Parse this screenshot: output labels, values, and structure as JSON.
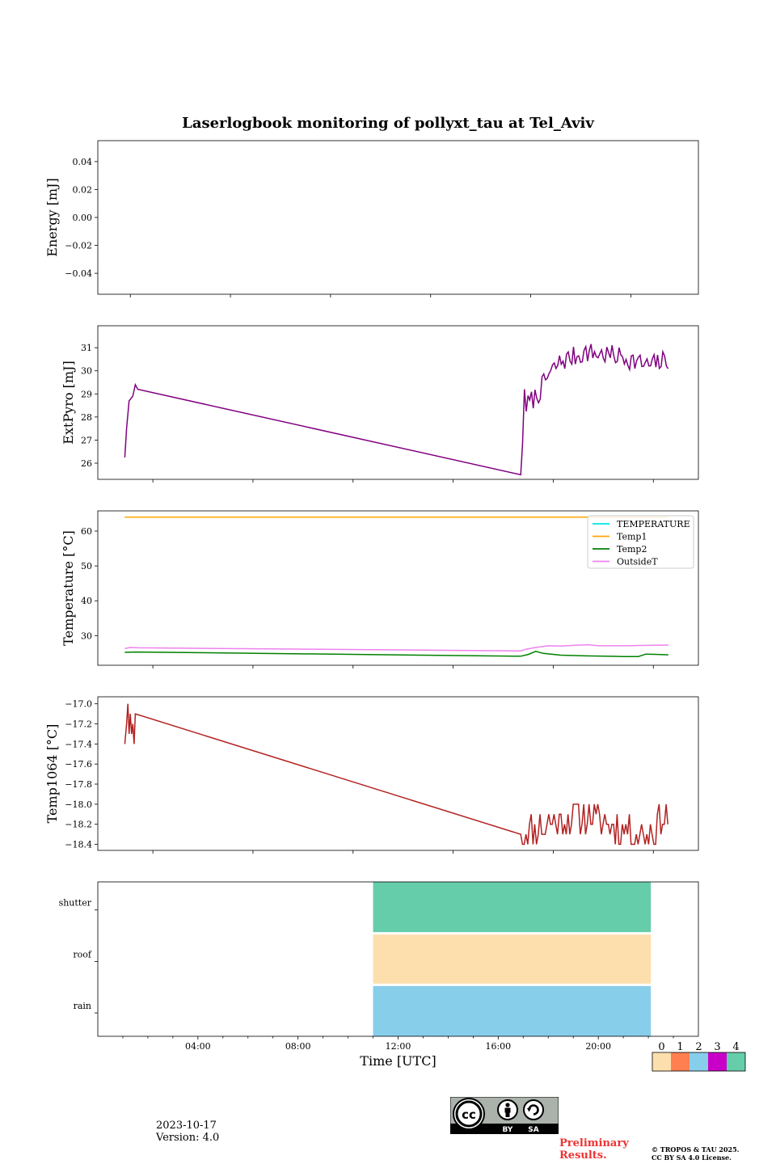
{
  "figure_title": "Laserlogbook monitoring of pollyxt_tau at Tel_Aviv",
  "footer": {
    "date": "2023-10-17",
    "version": "Version: 4.0",
    "preliminary_line1": "Preliminary",
    "preliminary_line2": "Results.",
    "copyright_line1": "© TROPOS & TAU 2025.",
    "copyright_line2": "CC BY SA 4.0 License.",
    "badge_labels": [
      "BY",
      "SA"
    ],
    "badge_icons": [
      "cc-icon",
      "person-icon",
      "share-alike-icon"
    ]
  },
  "chart_data": [
    {
      "type": "line",
      "ylabel": "Energy [mJ]",
      "ylim": [
        -0.055,
        0.055
      ],
      "yticks": [
        0.04,
        0.02,
        0.0,
        -0.02,
        -0.04
      ],
      "ytick_labels": [
        "0.04",
        "0.02",
        "0.00",
        "−0.02",
        "−0.04"
      ],
      "series": []
    },
    {
      "type": "line",
      "ylabel": "ExtPyro [mJ]",
      "ylim": [
        25.3,
        31.95
      ],
      "yticks": [
        26,
        27,
        28,
        29,
        30,
        31
      ],
      "ytick_labels": [
        "26",
        "27",
        "28",
        "29",
        "30",
        "31"
      ],
      "color": "#800080",
      "anchors": [
        [
          1.08,
          26.25
        ],
        [
          1.15,
          27.5
        ],
        [
          1.25,
          28.7
        ],
        [
          1.4,
          28.9
        ],
        [
          1.5,
          29.4
        ],
        [
          1.6,
          29.2
        ],
        [
          16.9,
          25.5
        ],
        [
          16.97,
          26.8
        ],
        [
          17.05,
          29.2
        ]
      ],
      "noise": {
        "start": 17.05,
        "end": 22.8,
        "step": 0.07,
        "seed": 7,
        "mean": [
          [
            17.05,
            28.4
          ],
          [
            17.6,
            29.0
          ],
          [
            18.0,
            29.8
          ],
          [
            18.5,
            30.4
          ],
          [
            19.5,
            30.8
          ],
          [
            21.0,
            30.6
          ],
          [
            22.0,
            30.2
          ],
          [
            22.8,
            30.5
          ]
        ],
        "amp": 0.45
      }
    },
    {
      "type": "line",
      "ylabel": "Temperature [°C]",
      "ylim": [
        21.5,
        65.8
      ],
      "yticks": [
        30,
        40,
        50,
        60
      ],
      "ytick_labels": [
        "30",
        "40",
        "50",
        "60"
      ],
      "legend": {
        "placement": "top-right",
        "entries": [
          "TEMPERATURE",
          "Temp1",
          "Temp2",
          "OutsideT"
        ]
      },
      "series": [
        {
          "name": "TEMPERATURE",
          "color": "#00e5e5",
          "points": []
        },
        {
          "name": "Temp1",
          "color": "#ffa500",
          "points": [
            [
              1.08,
              64.0
            ],
            [
              22.8,
              64.0
            ]
          ]
        },
        {
          "name": "Temp2",
          "color": "#008000",
          "points": [
            [
              1.08,
              25.2
            ],
            [
              1.5,
              25.3
            ],
            [
              16.9,
              24.1
            ],
            [
              17.2,
              24.6
            ],
            [
              17.5,
              25.5
            ],
            [
              17.8,
              24.9
            ],
            [
              18.5,
              24.4
            ],
            [
              19.5,
              24.2
            ],
            [
              21.0,
              24.0
            ],
            [
              21.6,
              24.0
            ],
            [
              21.9,
              24.7
            ],
            [
              22.4,
              24.6
            ],
            [
              22.8,
              24.5
            ]
          ]
        },
        {
          "name": "OutsideT",
          "color": "#ee82ee",
          "points": [
            [
              1.08,
              26.3
            ],
            [
              1.3,
              26.6
            ],
            [
              1.6,
              26.5
            ],
            [
              16.9,
              25.6
            ],
            [
              17.1,
              26.1
            ],
            [
              17.5,
              26.6
            ],
            [
              18.0,
              27.1
            ],
            [
              18.5,
              27.0
            ],
            [
              19.0,
              27.2
            ],
            [
              19.6,
              27.4
            ],
            [
              20.0,
              27.1
            ],
            [
              21.0,
              27.1
            ],
            [
              22.0,
              27.2
            ],
            [
              22.8,
              27.3
            ]
          ]
        }
      ]
    },
    {
      "type": "line",
      "ylabel": "Temp1064 [°C]",
      "ylim": [
        -18.46,
        -16.93
      ],
      "yticks": [
        -17.0,
        -17.2,
        -17.4,
        -17.6,
        -17.8,
        -18.0,
        -18.2,
        -18.4
      ],
      "ytick_labels": [
        "−17.0",
        "−17.2",
        "−17.4",
        "−17.6",
        "−17.8",
        "−18.0",
        "−18.2",
        "−18.4"
      ],
      "color": "#b22222",
      "anchors": [
        [
          1.08,
          -17.4
        ],
        [
          1.15,
          -17.2
        ],
        [
          1.2,
          -17.0
        ],
        [
          1.25,
          -17.3
        ],
        [
          1.3,
          -17.1
        ],
        [
          1.35,
          -17.3
        ],
        [
          1.4,
          -17.2
        ],
        [
          1.45,
          -17.4
        ],
        [
          1.5,
          -17.1
        ],
        [
          16.9,
          -18.3
        ]
      ],
      "noise": {
        "start": 16.9,
        "end": 22.8,
        "step": 0.07,
        "seed": 11,
        "levels": [
          -18.0,
          -18.1,
          -18.2,
          -18.3,
          -18.4
        ],
        "mean": [
          [
            16.9,
            -18.3
          ],
          [
            18.0,
            -18.2
          ],
          [
            19.0,
            -18.1
          ],
          [
            20.0,
            -18.15
          ],
          [
            21.0,
            -18.25
          ],
          [
            22.0,
            -18.3
          ],
          [
            22.8,
            -18.1
          ]
        ]
      }
    },
    {
      "type": "heatmap",
      "xlabel": "Time [UTC]",
      "xlim": [
        0.0,
        24.0
      ],
      "xticks": [
        4,
        8,
        12,
        16,
        20
      ],
      "xtick_labels": [
        "04:00",
        "08:00",
        "12:00",
        "16:00",
        "20:00"
      ],
      "rows": [
        "shutter",
        "roof",
        "rain"
      ],
      "blocks": [
        {
          "row": "shutter",
          "start": 11.0,
          "end": 22.1,
          "value": 4
        },
        {
          "row": "roof",
          "start": 11.0,
          "end": 22.1,
          "value": 0
        },
        {
          "row": "rain",
          "start": 11.0,
          "end": 22.1,
          "value": 2
        }
      ],
      "colorbar": {
        "labels": [
          "0",
          "1",
          "2",
          "3",
          "4"
        ],
        "colors": [
          "#fddfae",
          "#ff7f50",
          "#87ceeb",
          "#c800c8",
          "#66cdaa"
        ]
      }
    }
  ]
}
